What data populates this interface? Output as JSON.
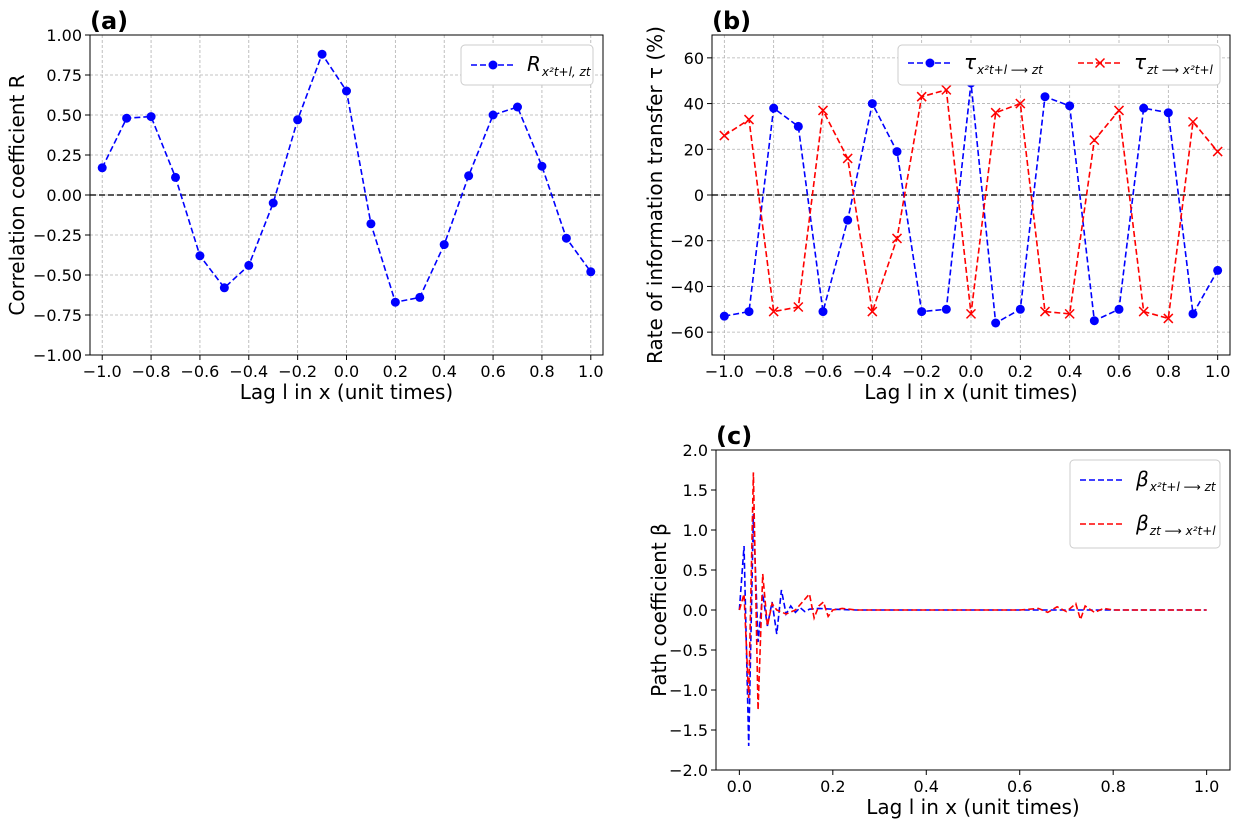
{
  "chart_data": [
    {
      "id": "a",
      "panel_label": "(a)",
      "type": "line",
      "xlabel": "Lag l in x (unit times)",
      "ylabel": "Correlation coefficient R",
      "xlim": [
        -1.05,
        1.05
      ],
      "ylim": [
        -1.0,
        1.0
      ],
      "xticks": [
        -1.0,
        -0.8,
        -0.6,
        -0.4,
        -0.2,
        0.0,
        0.2,
        0.4,
        0.6,
        0.8,
        1.0
      ],
      "xtick_labels": [
        "−1.0",
        "−0.8",
        "−0.6",
        "−0.4",
        "−0.2",
        "0.0",
        "0.2",
        "0.4",
        "0.6",
        "0.8",
        "1.0"
      ],
      "yticks": [
        -1.0,
        -0.75,
        -0.5,
        -0.25,
        0.0,
        0.25,
        0.5,
        0.75,
        1.0
      ],
      "ytick_labels": [
        "−1.00",
        "−0.75",
        "−0.50",
        "−0.25",
        "0.00",
        "0.25",
        "0.50",
        "0.75",
        "1.00"
      ],
      "grid": true,
      "zero_line": true,
      "legend_position": "top-right",
      "series": [
        {
          "name": "R x²(t+l), z(t)",
          "legend_main": "R",
          "legend_sub": "x²t+l, zt",
          "color": "#0000ff",
          "marker": "circle",
          "x": [
            -1.0,
            -0.9,
            -0.8,
            -0.7,
            -0.6,
            -0.5,
            -0.4,
            -0.3,
            -0.2,
            -0.1,
            0.0,
            0.1,
            0.2,
            0.3,
            0.4,
            0.5,
            0.6,
            0.7,
            0.8,
            0.9,
            1.0
          ],
          "y": [
            0.17,
            0.48,
            0.49,
            0.11,
            -0.38,
            -0.58,
            -0.44,
            -0.05,
            0.47,
            0.88,
            0.65,
            -0.18,
            -0.67,
            -0.64,
            -0.31,
            0.12,
            0.5,
            0.55,
            0.18,
            -0.27,
            -0.48
          ]
        }
      ]
    },
    {
      "id": "b",
      "panel_label": "(b)",
      "type": "line",
      "xlabel": "Lag l in x (unit times)",
      "ylabel": "Rate of information transfer τ (%)",
      "xlim": [
        -1.05,
        1.05
      ],
      "ylim": [
        -70,
        70
      ],
      "xticks": [
        -1.0,
        -0.8,
        -0.6,
        -0.4,
        -0.2,
        0.0,
        0.2,
        0.4,
        0.6,
        0.8,
        1.0
      ],
      "xtick_labels": [
        "−1.0",
        "−0.8",
        "−0.6",
        "−0.4",
        "−0.2",
        "0.0",
        "0.2",
        "0.4",
        "0.6",
        "0.8",
        "1.0"
      ],
      "yticks": [
        -60,
        -40,
        -20,
        0,
        20,
        40,
        60
      ],
      "ytick_labels": [
        "−60",
        "−40",
        "−20",
        "0",
        "20",
        "40",
        "60"
      ],
      "grid": true,
      "zero_line": true,
      "legend_position": "top-right",
      "series": [
        {
          "name": "τ x²(t+l) → z(t)",
          "legend_main": "τ",
          "legend_sub": "x²t+l ⟶ zt",
          "color": "#0000ff",
          "marker": "circle",
          "x": [
            -1.0,
            -0.9,
            -0.8,
            -0.7,
            -0.6,
            -0.5,
            -0.4,
            -0.3,
            -0.2,
            -0.1,
            0.0,
            0.1,
            0.2,
            0.3,
            0.4,
            0.5,
            0.6,
            0.7,
            0.8,
            0.9,
            1.0
          ],
          "y": [
            -53,
            -51,
            38,
            30,
            -51,
            -11,
            40,
            19,
            -51,
            -50,
            49,
            -56,
            -50,
            43,
            39,
            -55,
            -50,
            38,
            36,
            -52,
            -33
          ]
        },
        {
          "name": "τ z(t) → x²(t+l)",
          "legend_main": "τ",
          "legend_sub": "zt ⟶ x²t+l",
          "color": "#ff0000",
          "marker": "x",
          "x": [
            -1.0,
            -0.9,
            -0.8,
            -0.7,
            -0.6,
            -0.5,
            -0.4,
            -0.3,
            -0.2,
            -0.1,
            0.0,
            0.1,
            0.2,
            0.3,
            0.4,
            0.5,
            0.6,
            0.7,
            0.8,
            0.9,
            1.0
          ],
          "y": [
            26,
            33,
            -51,
            -49,
            37,
            16,
            -51,
            -19,
            43,
            46,
            -52,
            36,
            40,
            -51,
            -52,
            24,
            37,
            -51,
            -54,
            32,
            19
          ]
        }
      ]
    },
    {
      "id": "c",
      "panel_label": "(c)",
      "type": "line",
      "xlabel": "Lag l in x (unit times)",
      "ylabel": "Path coefficient β",
      "xlim": [
        -0.05,
        1.05
      ],
      "ylim": [
        -2.0,
        2.0
      ],
      "xticks": [
        0.0,
        0.2,
        0.4,
        0.6,
        0.8,
        1.0
      ],
      "xtick_labels": [
        "0.0",
        "0.2",
        "0.4",
        "0.6",
        "0.8",
        "1.0"
      ],
      "yticks": [
        -2.0,
        -1.5,
        -1.0,
        -0.5,
        0.0,
        0.5,
        1.0,
        1.5,
        2.0
      ],
      "ytick_labels": [
        "−2.0",
        "−1.5",
        "−1.0",
        "−0.5",
        "0.0",
        "0.5",
        "1.0",
        "1.5",
        "2.0"
      ],
      "grid": false,
      "zero_line": false,
      "legend_position": "top-right",
      "series": [
        {
          "name": "β x²(t+l) → z(t)",
          "legend_main": "β",
          "legend_sub": "x²t+l ⟶ zt",
          "color": "#0000ff",
          "marker": "none",
          "x": [
            0.0,
            0.01,
            0.02,
            0.03,
            0.04,
            0.05,
            0.06,
            0.07,
            0.08,
            0.09,
            0.1,
            0.11,
            0.12,
            0.13,
            0.14,
            0.15,
            0.17,
            0.2,
            0.25,
            0.3,
            0.4,
            0.5,
            0.6,
            0.7,
            0.8,
            0.9,
            1.0
          ],
          "y": [
            0.0,
            0.8,
            -1.7,
            1.2,
            -0.4,
            0.2,
            -0.2,
            0.1,
            -0.3,
            0.25,
            -0.05,
            0.05,
            -0.03,
            0.03,
            -0.02,
            0.01,
            0.02,
            0.01,
            0.0,
            0.0,
            0.0,
            0.0,
            0.0,
            0.0,
            0.0,
            0.0,
            0.0
          ]
        },
        {
          "name": "β z(t) → x²(t+l)",
          "legend_main": "β",
          "legend_sub": "zt ⟶ x²t+l",
          "color": "#ff0000",
          "marker": "none",
          "x": [
            0.0,
            0.01,
            0.02,
            0.03,
            0.04,
            0.05,
            0.06,
            0.07,
            0.08,
            0.1,
            0.12,
            0.15,
            0.16,
            0.17,
            0.18,
            0.19,
            0.2,
            0.22,
            0.25,
            0.4,
            0.6,
            0.64,
            0.66,
            0.68,
            0.7,
            0.72,
            0.73,
            0.74,
            0.76,
            0.78,
            0.8,
            0.85,
            0.9,
            1.0
          ],
          "y": [
            0.0,
            0.2,
            -1.1,
            1.72,
            -1.25,
            0.45,
            -0.2,
            0.08,
            0.0,
            -0.05,
            0.0,
            0.2,
            -0.1,
            0.05,
            0.1,
            -0.08,
            0.0,
            0.02,
            0.0,
            0.0,
            0.0,
            0.02,
            -0.03,
            0.04,
            -0.02,
            0.08,
            -0.12,
            0.05,
            -0.03,
            0.02,
            0.0,
            0.0,
            0.0,
            0.0
          ]
        }
      ]
    }
  ]
}
